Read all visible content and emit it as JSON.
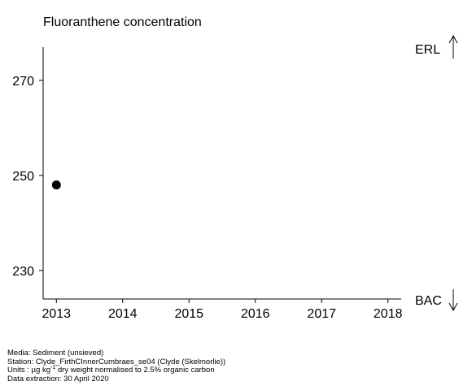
{
  "chart_data": {
    "type": "scatter",
    "title": "Fluoranthene concentration",
    "xlabel": "",
    "ylabel": "",
    "x_ticks": [
      2013,
      2014,
      2015,
      2016,
      2017,
      2018
    ],
    "y_ticks": [
      230,
      250,
      270
    ],
    "xlim": [
      2012.8,
      2018.2
    ],
    "ylim": [
      224,
      277
    ],
    "series": [
      {
        "points": [
          {
            "x": 2013,
            "y": 248
          }
        ]
      }
    ],
    "reference_labels": {
      "upper": "ERL",
      "lower": "BAC"
    }
  },
  "footer": {
    "media": "Media: Sediment (unsieved)",
    "station": "Station: Clyde_FirthCInnerCumbraes_se04 (Clyde (Skelmorlie))",
    "units_prefix": "Units : µg kg",
    "units_sup": "-1",
    "units_suffix": " dry weight normalised to 2.5% organic carbon",
    "extraction": "Data extraction: 30 April 2020"
  }
}
